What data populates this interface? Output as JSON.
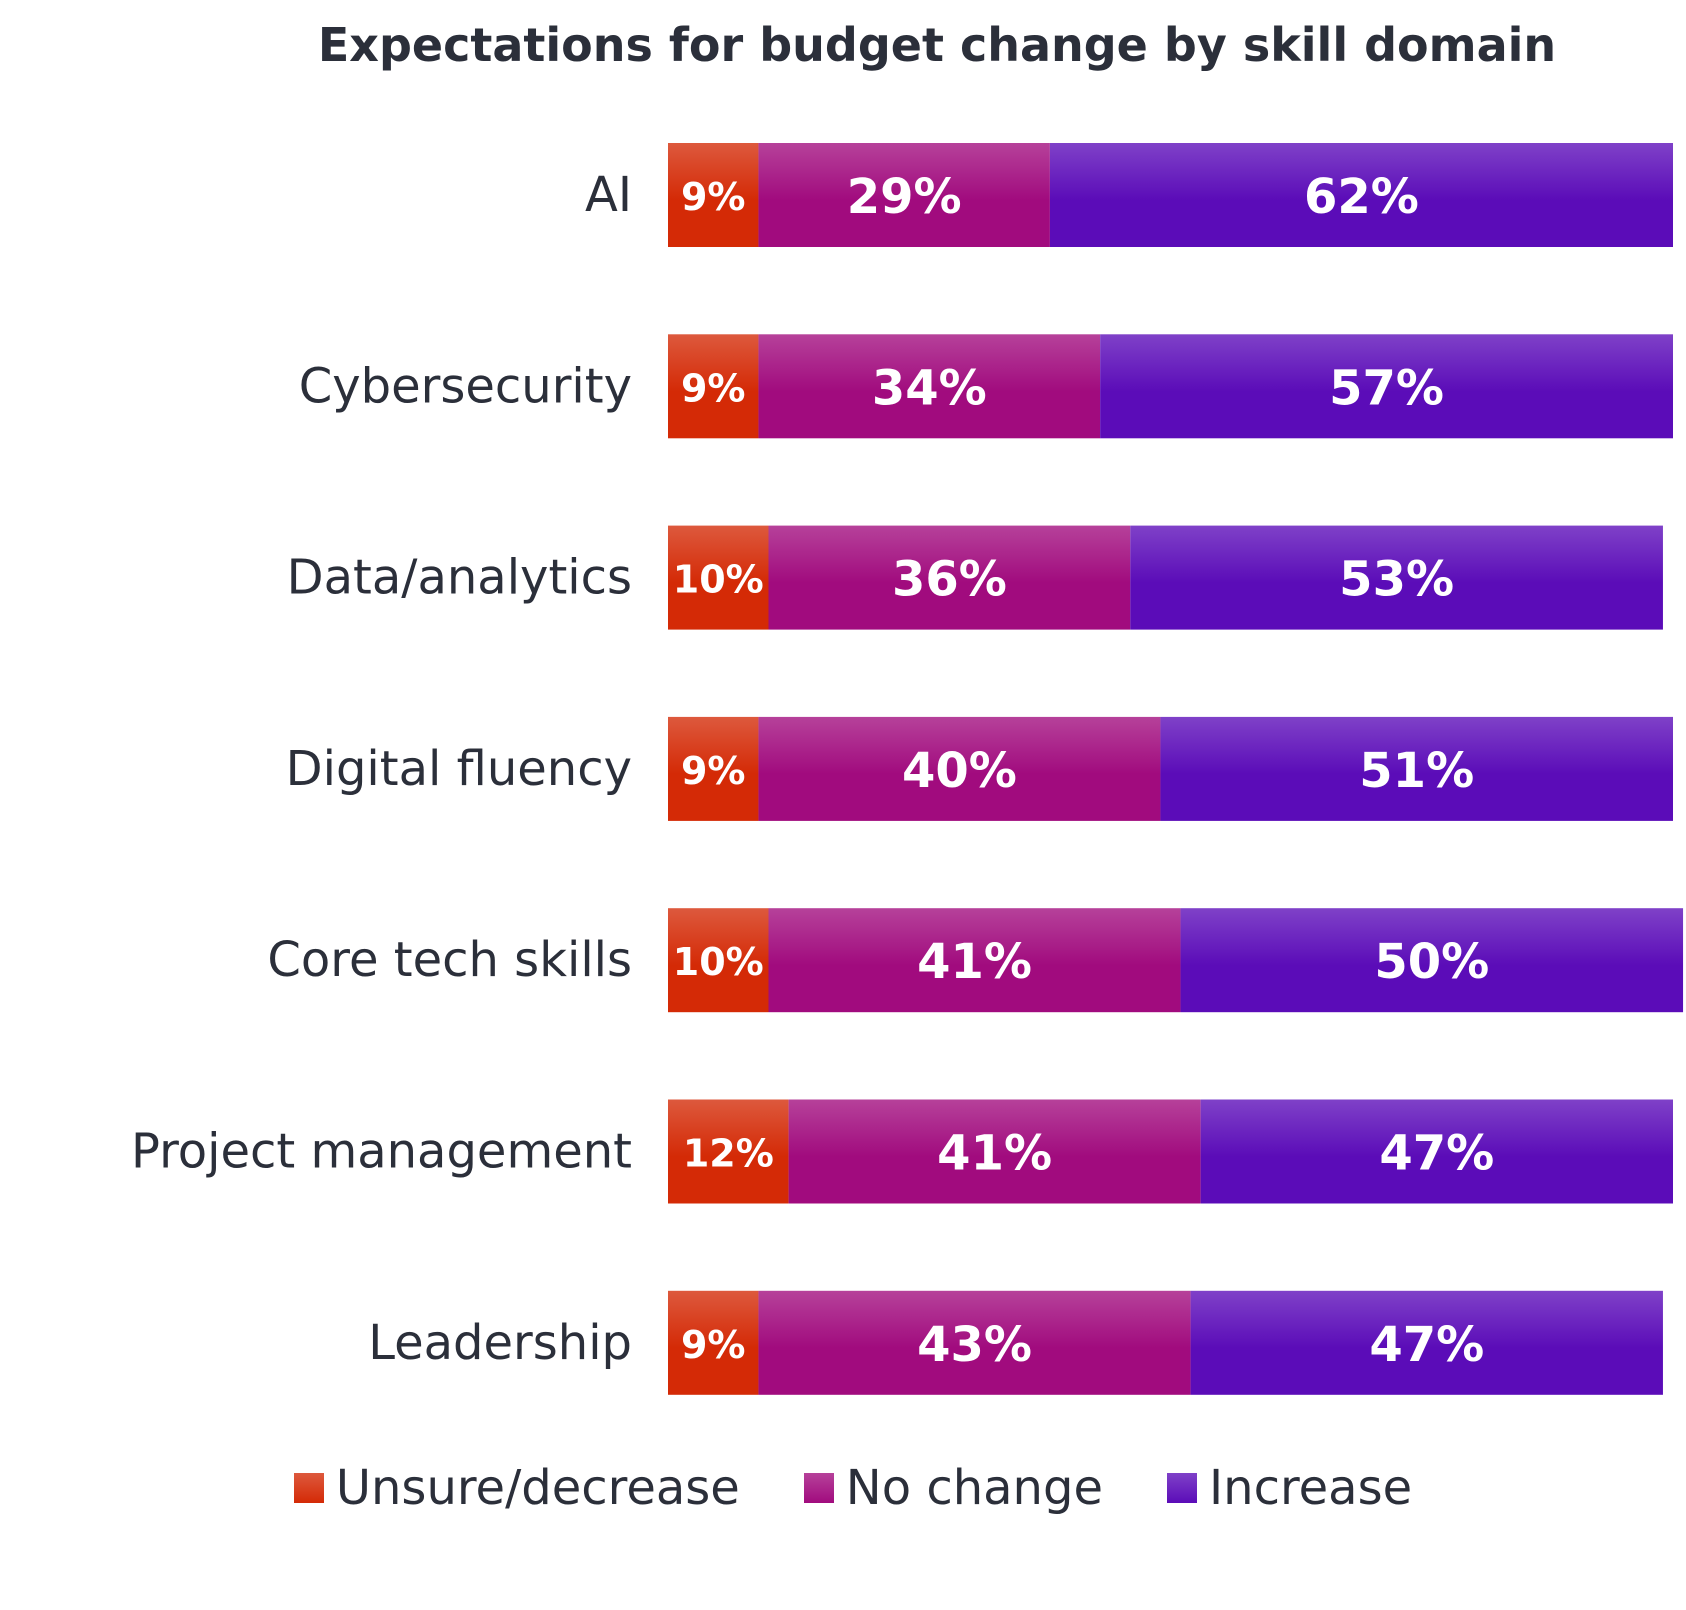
{
  "chart_data": {
    "type": "bar",
    "orientation": "horizontal",
    "stacked": true,
    "title": "Expectations for budget change by skill domain",
    "xlabel": "",
    "ylabel": "",
    "value_unit": "%",
    "grid": false,
    "legend_position": "bottom",
    "categories": [
      "AI",
      "Cybersecurity",
      "Data/analytics",
      "Digital fluency",
      "Core tech skills",
      "Project management",
      "Leadership"
    ],
    "series": [
      {
        "name": "Unsure/decrease",
        "color": "#d42a06",
        "values": [
          9,
          9,
          10,
          9,
          10,
          12,
          9
        ]
      },
      {
        "name": "No change",
        "color": "#a10b7e",
        "values": [
          29,
          34,
          36,
          40,
          41,
          41,
          43
        ]
      },
      {
        "name": "Increase",
        "color": "#5b0cb8",
        "values": [
          62,
          57,
          53,
          51,
          50,
          47,
          47
        ]
      }
    ]
  }
}
